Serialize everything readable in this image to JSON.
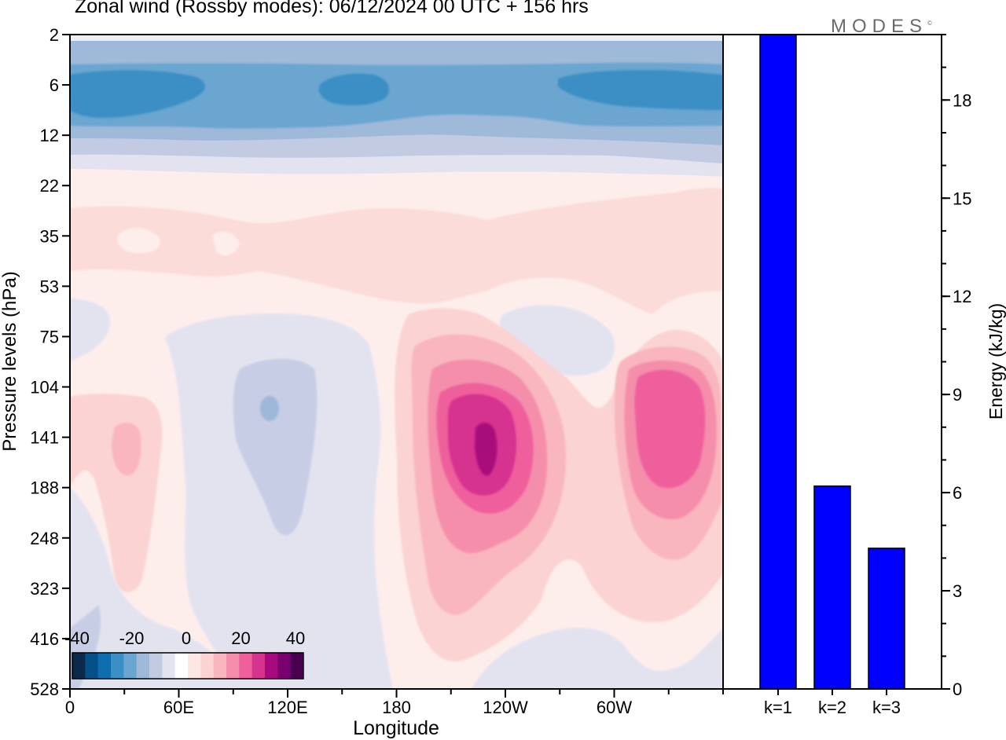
{
  "title": "Zonal wind (Rossby modes):  06/12/2024  00 UTC  + 156 hrs",
  "brand": "MODES",
  "brand_mark": "©",
  "chart_data": [
    {
      "type": "heatmap",
      "title": "Zonal wind (Rossby modes):  06/12/2024  00 UTC  + 156 hrs",
      "xlabel": "Longitude",
      "ylabel": "Pressure levels (hPa)",
      "x_ticks": [
        "0",
        "60E",
        "120E",
        "180",
        "120W",
        "60W"
      ],
      "x_tick_positions_deg_east": [
        0,
        60,
        120,
        180,
        240,
        300
      ],
      "xlim_deg_east": [
        0,
        360
      ],
      "y_ticks": [
        "2",
        "6",
        "12",
        "22",
        "35",
        "53",
        "75",
        "104",
        "141",
        "188",
        "248",
        "323",
        "416",
        "528"
      ],
      "y_scale": "pressure levels, evenly spaced",
      "colorbar": {
        "tick_labels": [
          "-40",
          "-20",
          "0",
          "20",
          "40"
        ],
        "colors": [
          "#0b2a4a",
          "#06508a",
          "#0d6fb0",
          "#3b8fc4",
          "#6aa6cf",
          "#9fb9d9",
          "#c3cbe3",
          "#e3e3f0",
          "#ffffff",
          "#fde7e4",
          "#fbd3d2",
          "#f9b6be",
          "#f58eab",
          "#ef5f9b",
          "#d6338f",
          "#a8097c",
          "#7a0070",
          "#4a0050"
        ],
        "orientation": "horizontal",
        "placement": "bottom-left inside plot"
      },
      "features": [
        {
          "description": "Easterly band near top of atmosphere (levels 6–12 hPa), approx -30 m/s",
          "sign": "negative"
        },
        {
          "description": "Westerly maximum near 100–140W at ~141 hPa, approx 40 m/s",
          "sign": "positive"
        },
        {
          "description": "Secondary westerly maximum near 20–40W at ~141 hPa, approx 30 m/s",
          "sign": "positive"
        }
      ]
    },
    {
      "type": "bar",
      "categories": [
        "k=1",
        "k=2",
        "k=3"
      ],
      "values": [
        20.2,
        6.2,
        4.3
      ],
      "ylabel": "Energy (kJ/kg)",
      "y_ticks": [
        "0",
        "3",
        "6",
        "9",
        "12",
        "15",
        "18"
      ],
      "ylim": [
        0,
        20
      ],
      "bar_color": "#0000ff"
    }
  ]
}
